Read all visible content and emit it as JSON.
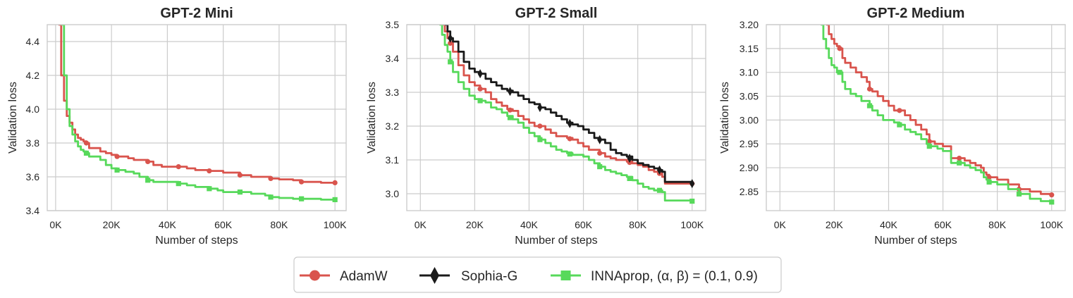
{
  "chart_data": [
    {
      "type": "line",
      "title": "GPT-2 Mini",
      "xlabel": "Number of steps",
      "ylabel": "Validation loss",
      "xlim": [
        -3000,
        104000
      ],
      "ylim": [
        3.4,
        4.5
      ],
      "xticks": [
        0,
        20000,
        40000,
        60000,
        80000,
        100000
      ],
      "xtick_labels": [
        "0K",
        "20K",
        "40K",
        "60K",
        "80K",
        "100K"
      ],
      "yticks": [
        3.4,
        3.6,
        3.8,
        4.0,
        4.2,
        4.4
      ],
      "ytick_labels": [
        "3.4",
        "3.6",
        "3.8",
        "4.0",
        "4.2",
        "4.4"
      ],
      "grid": true,
      "series": [
        {
          "name": "AdamW",
          "color": "#d9544d",
          "marker": "circle",
          "x": [
            1000,
            2000,
            3000,
            4000,
            5000,
            6000,
            7000,
            8000,
            9000,
            10000,
            11000,
            12000,
            14000,
            16000,
            18000,
            20000,
            22000,
            24000,
            26000,
            28000,
            30000,
            33000,
            35000,
            38000,
            40000,
            44000,
            47000,
            50000,
            55000,
            60000,
            66000,
            70000,
            77000,
            80000,
            85000,
            88000,
            95000,
            100000
          ],
          "y": [
            4.5,
            4.2,
            4.05,
            3.96,
            3.92,
            3.88,
            3.85,
            3.83,
            3.82,
            3.81,
            3.8,
            3.77,
            3.77,
            3.75,
            3.74,
            3.73,
            3.72,
            3.72,
            3.71,
            3.7,
            3.7,
            3.69,
            3.67,
            3.66,
            3.66,
            3.66,
            3.65,
            3.64,
            3.635,
            3.625,
            3.61,
            3.6,
            3.59,
            3.585,
            3.58,
            3.57,
            3.565,
            3.565
          ],
          "marker_x": [
            11000,
            22000,
            33000,
            44000,
            55000,
            66000,
            77000,
            88000,
            100000
          ]
        },
        {
          "name": "INNAprop, (α, β) = (0.1, 0.9)",
          "color": "#57d95b",
          "marker": "square",
          "x": [
            2000,
            3000,
            4000,
            5000,
            6000,
            7000,
            8000,
            9000,
            10000,
            11000,
            12000,
            14000,
            16000,
            18000,
            20000,
            22000,
            25000,
            28000,
            30000,
            33000,
            35000,
            40000,
            44000,
            47000,
            50000,
            55000,
            58000,
            60000,
            66000,
            70000,
            75000,
            77000,
            80000,
            85000,
            88000,
            95000,
            100000
          ],
          "y": [
            4.5,
            4.2,
            4.0,
            3.9,
            3.85,
            3.81,
            3.78,
            3.76,
            3.75,
            3.74,
            3.72,
            3.72,
            3.7,
            3.67,
            3.65,
            3.64,
            3.63,
            3.62,
            3.6,
            3.58,
            3.57,
            3.57,
            3.56,
            3.55,
            3.54,
            3.53,
            3.52,
            3.51,
            3.51,
            3.5,
            3.49,
            3.48,
            3.475,
            3.47,
            3.47,
            3.465,
            3.465
          ],
          "marker_x": [
            11000,
            22000,
            33000,
            44000,
            55000,
            66000,
            77000,
            88000,
            100000
          ]
        }
      ]
    },
    {
      "type": "line",
      "title": "GPT-2 Small",
      "xlabel": "Number of steps",
      "ylabel": "Validation loss",
      "xlim": [
        -5000,
        105000
      ],
      "ylim": [
        2.95,
        3.5
      ],
      "xticks": [
        0,
        20000,
        40000,
        60000,
        80000,
        100000
      ],
      "xtick_labels": [
        "0K",
        "20K",
        "40K",
        "60K",
        "80K",
        "100K"
      ],
      "yticks": [
        3.0,
        3.1,
        3.2,
        3.3,
        3.4,
        3.5
      ],
      "ytick_labels": [
        "3.0",
        "3.1",
        "3.2",
        "3.3",
        "3.4",
        "3.5"
      ],
      "grid": true,
      "series": [
        {
          "name": "AdamW",
          "color": "#d9544d",
          "marker": "circle",
          "x": [
            8000,
            9000,
            10000,
            11000,
            12000,
            14000,
            16000,
            18000,
            20000,
            22000,
            24000,
            26000,
            28000,
            30000,
            32000,
            34000,
            36000,
            38000,
            40000,
            42000,
            44000,
            46000,
            48000,
            50000,
            52000,
            54000,
            56000,
            58000,
            60000,
            62000,
            64000,
            66000,
            68000,
            70000,
            72000,
            74000,
            76000,
            78000,
            80000,
            82000,
            84000,
            86000,
            88000,
            89000,
            90000,
            95000,
            100000
          ],
          "y": [
            3.5,
            3.48,
            3.46,
            3.445,
            3.42,
            3.38,
            3.35,
            3.33,
            3.32,
            3.31,
            3.3,
            3.28,
            3.27,
            3.26,
            3.25,
            3.245,
            3.23,
            3.22,
            3.21,
            3.2,
            3.2,
            3.19,
            3.18,
            3.17,
            3.17,
            3.165,
            3.16,
            3.15,
            3.14,
            3.13,
            3.13,
            3.12,
            3.11,
            3.105,
            3.1,
            3.1,
            3.095,
            3.09,
            3.085,
            3.08,
            3.07,
            3.065,
            3.06,
            3.05,
            3.03,
            3.03,
            3.03
          ],
          "marker_x": [
            11000,
            22000,
            33000,
            44000,
            55000,
            66000,
            77000,
            88000,
            100000
          ]
        },
        {
          "name": "Sophia-G",
          "color": "#1a1a1a",
          "marker": "diamond",
          "x": [
            9000,
            10000,
            11000,
            12000,
            14000,
            16000,
            18000,
            20000,
            22000,
            24000,
            26000,
            28000,
            30000,
            32000,
            34000,
            36000,
            38000,
            40000,
            42000,
            44000,
            46000,
            48000,
            50000,
            52000,
            54000,
            56000,
            58000,
            60000,
            62000,
            64000,
            66000,
            68000,
            70000,
            72000,
            74000,
            76000,
            78000,
            80000,
            82000,
            84000,
            86000,
            88000,
            89000,
            90000,
            95000,
            100000
          ],
          "y": [
            3.5,
            3.48,
            3.46,
            3.45,
            3.42,
            3.39,
            3.37,
            3.36,
            3.355,
            3.34,
            3.33,
            3.32,
            3.31,
            3.305,
            3.3,
            3.29,
            3.28,
            3.27,
            3.265,
            3.255,
            3.25,
            3.24,
            3.23,
            3.22,
            3.21,
            3.205,
            3.2,
            3.19,
            3.18,
            3.165,
            3.16,
            3.15,
            3.13,
            3.12,
            3.115,
            3.11,
            3.1,
            3.09,
            3.085,
            3.08,
            3.075,
            3.07,
            3.065,
            3.035,
            3.035,
            3.03
          ],
          "marker_x": [
            11000,
            22000,
            33000,
            44000,
            55000,
            66000,
            77000,
            88000,
            100000
          ]
        },
        {
          "name": "INNAprop, (α, β) = (0.1, 0.9)",
          "color": "#57d95b",
          "marker": "square",
          "x": [
            7000,
            8000,
            9000,
            10000,
            11000,
            12000,
            14000,
            16000,
            18000,
            20000,
            22000,
            24000,
            26000,
            28000,
            30000,
            32000,
            34000,
            36000,
            38000,
            40000,
            42000,
            44000,
            46000,
            48000,
            50000,
            52000,
            54000,
            56000,
            58000,
            60000,
            62000,
            64000,
            66000,
            68000,
            70000,
            72000,
            74000,
            76000,
            78000,
            80000,
            82000,
            84000,
            86000,
            88000,
            89000,
            90000,
            95000,
            100000
          ],
          "y": [
            3.5,
            3.47,
            3.44,
            3.42,
            3.39,
            3.36,
            3.33,
            3.31,
            3.29,
            3.28,
            3.275,
            3.27,
            3.255,
            3.25,
            3.24,
            3.23,
            3.22,
            3.21,
            3.195,
            3.18,
            3.17,
            3.16,
            3.15,
            3.14,
            3.13,
            3.125,
            3.12,
            3.115,
            3.115,
            3.11,
            3.1,
            3.09,
            3.08,
            3.07,
            3.065,
            3.06,
            3.055,
            3.05,
            3.04,
            3.03,
            3.02,
            3.015,
            3.01,
            3.01,
            3.005,
            2.98,
            2.98,
            2.978
          ],
          "marker_x": [
            11000,
            22000,
            33000,
            44000,
            55000,
            66000,
            77000,
            88000,
            100000
          ]
        }
      ]
    },
    {
      "type": "line",
      "title": "GPT-2 Medium",
      "xlabel": "Number of steps",
      "ylabel": "Validation loss",
      "xlim": [
        -5000,
        105000
      ],
      "ylim": [
        2.81,
        3.2
      ],
      "xticks": [
        0,
        20000,
        40000,
        60000,
        80000,
        100000
      ],
      "xtick_labels": [
        "0K",
        "20K",
        "40K",
        "60K",
        "80K",
        "100K"
      ],
      "yticks": [
        2.85,
        2.9,
        2.95,
        3.0,
        3.05,
        3.1,
        3.15,
        3.2
      ],
      "ytick_labels": [
        "2.85",
        "2.90",
        "2.95",
        "3.00",
        "3.05",
        "3.10",
        "3.15",
        "3.20"
      ],
      "grid": true,
      "series": [
        {
          "name": "AdamW",
          "color": "#d9544d",
          "marker": "circle",
          "x": [
            17000,
            18000,
            19000,
            20000,
            21000,
            22000,
            23000,
            24000,
            26000,
            28000,
            30000,
            32000,
            33000,
            34000,
            36000,
            38000,
            40000,
            42000,
            44000,
            46000,
            48000,
            50000,
            52000,
            54000,
            55000,
            57000,
            58000,
            60000,
            62000,
            63000,
            64000,
            66000,
            68000,
            70000,
            72000,
            74000,
            75000,
            76000,
            77000,
            80000,
            84000,
            88000,
            92000,
            96000,
            100000
          ],
          "y": [
            3.2,
            3.18,
            3.17,
            3.16,
            3.155,
            3.15,
            3.13,
            3.12,
            3.11,
            3.1,
            3.09,
            3.08,
            3.065,
            3.06,
            3.05,
            3.04,
            3.03,
            3.02,
            3.02,
            3.01,
            3.0,
            2.99,
            2.98,
            2.97,
            2.955,
            2.95,
            2.95,
            2.945,
            2.945,
            2.92,
            2.92,
            2.92,
            2.915,
            2.91,
            2.905,
            2.9,
            2.89,
            2.885,
            2.88,
            2.875,
            2.865,
            2.855,
            2.85,
            2.845,
            2.843
          ],
          "marker_x": [
            22000,
            33000,
            44000,
            55000,
            66000,
            77000,
            88000,
            100000
          ]
        },
        {
          "name": "INNAprop, (α, β) = (0.1, 0.9)",
          "color": "#57d95b",
          "marker": "square",
          "x": [
            15000,
            16000,
            17000,
            18000,
            19000,
            20000,
            21000,
            22000,
            23000,
            24000,
            26000,
            28000,
            30000,
            32000,
            33000,
            34000,
            36000,
            38000,
            40000,
            42000,
            44000,
            46000,
            48000,
            50000,
            52000,
            54000,
            55000,
            57000,
            58000,
            60000,
            62000,
            63000,
            64000,
            66000,
            68000,
            70000,
            72000,
            74000,
            75000,
            76000,
            77000,
            80000,
            84000,
            88000,
            92000,
            96000,
            100000
          ],
          "y": [
            3.2,
            3.17,
            3.15,
            3.13,
            3.115,
            3.11,
            3.1,
            3.1,
            3.08,
            3.065,
            3.055,
            3.05,
            3.04,
            3.04,
            3.03,
            3.02,
            3.01,
            3.0,
            3.0,
            2.995,
            2.99,
            2.98,
            2.975,
            2.97,
            2.96,
            2.95,
            2.945,
            2.945,
            2.94,
            2.935,
            2.935,
            2.91,
            2.91,
            2.91,
            2.905,
            2.9,
            2.895,
            2.89,
            2.88,
            2.875,
            2.87,
            2.865,
            2.855,
            2.845,
            2.835,
            2.83,
            2.828
          ],
          "marker_x": [
            22000,
            33000,
            44000,
            55000,
            66000,
            77000,
            88000,
            100000
          ]
        }
      ]
    }
  ],
  "legend": {
    "placement": "bottom-center",
    "entries": [
      {
        "label": "AdamW",
        "color": "#d9544d",
        "marker": "circle"
      },
      {
        "label": "Sophia-G",
        "color": "#1a1a1a",
        "marker": "diamond"
      },
      {
        "label": "INNAprop, (α, β) = (0.1, 0.9)",
        "color": "#57d95b",
        "marker": "square"
      }
    ]
  }
}
